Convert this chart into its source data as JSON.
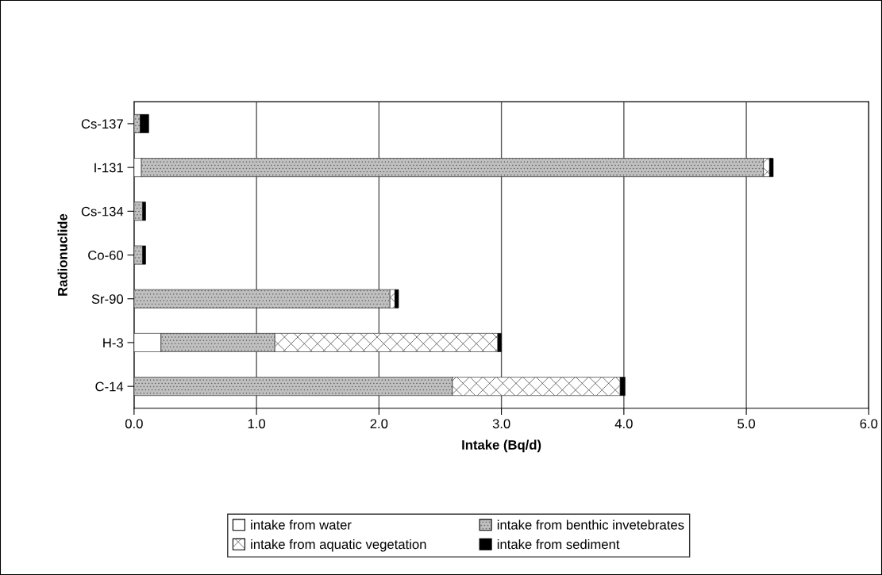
{
  "chart_data": {
    "type": "bar",
    "orientation": "horizontal",
    "stacked": true,
    "categories": [
      "Cs-137",
      "I-131",
      "Cs-134",
      "Co-60",
      "Sr-90",
      "H-3",
      "C-14"
    ],
    "series": [
      {
        "name": "intake from water",
        "color": "#ffffff",
        "values": [
          0,
          0.06,
          0,
          0,
          0,
          0.22,
          null
        ]
      },
      {
        "name": "intake from benthic invetebrates",
        "color": "#c0c0c0",
        "values": [
          0.05,
          5.08,
          0.07,
          0.07,
          2.09,
          0.93,
          2.6
        ]
      },
      {
        "name": "intake from aquatic vegetation",
        "color": "#ffffff",
        "values": [
          0,
          0.05,
          0,
          0,
          0.04,
          1.82,
          1.37
        ]
      },
      {
        "name": "intake from sediment",
        "color": "#000000",
        "values": [
          0.07,
          0.03,
          0.025,
          0.025,
          0.03,
          0.03,
          0.04
        ]
      }
    ],
    "xlabel": "Intake (Bq/d)",
    "ylabel": "Radionuclide",
    "xlim": [
      0,
      6
    ],
    "xticks": [
      {
        "value": 0,
        "label": "0.0"
      },
      {
        "value": 1,
        "label": "1.0"
      },
      {
        "value": 2,
        "label": "2.0"
      },
      {
        "value": 3,
        "label": "3.0"
      },
      {
        "value": 4,
        "label": "4.0"
      },
      {
        "value": 5,
        "label": "5.0"
      },
      {
        "value": 6,
        "label": "6.0"
      }
    ],
    "grid": "x",
    "legend": "bottom"
  }
}
